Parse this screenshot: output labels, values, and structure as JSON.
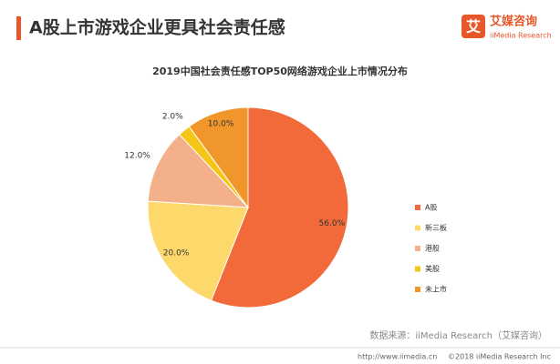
{
  "header": {
    "title": "A股上市游戏企业更具社会责任感",
    "logo": "艾媒咨询",
    "logo_sub": "iiMedia Research",
    "logo_icon": "艾"
  },
  "chart_data": {
    "type": "pie",
    "title": "2019中国社会责任感TOP50网络游戏企业上市情况分布",
    "categories": [
      "A股",
      "新三板",
      "港股",
      "美股",
      "未上市"
    ],
    "values": [
      56,
      20,
      12,
      2,
      10
    ],
    "value_labels": [
      "56.0%",
      "20.0%",
      "12.0%",
      "2.0%",
      "10.0%"
    ],
    "colors": [
      "#f26a3a",
      "#fcd96a",
      "#f4b08a",
      "#f5c518",
      "#f0962a"
    ],
    "legend": "right"
  },
  "source": "数据来源：iiMedia Research（艾媒咨询）",
  "footer": {
    "url": "http://www.iimedia.cn",
    "copyright": "©2018  iiMedia Research  Inc"
  }
}
